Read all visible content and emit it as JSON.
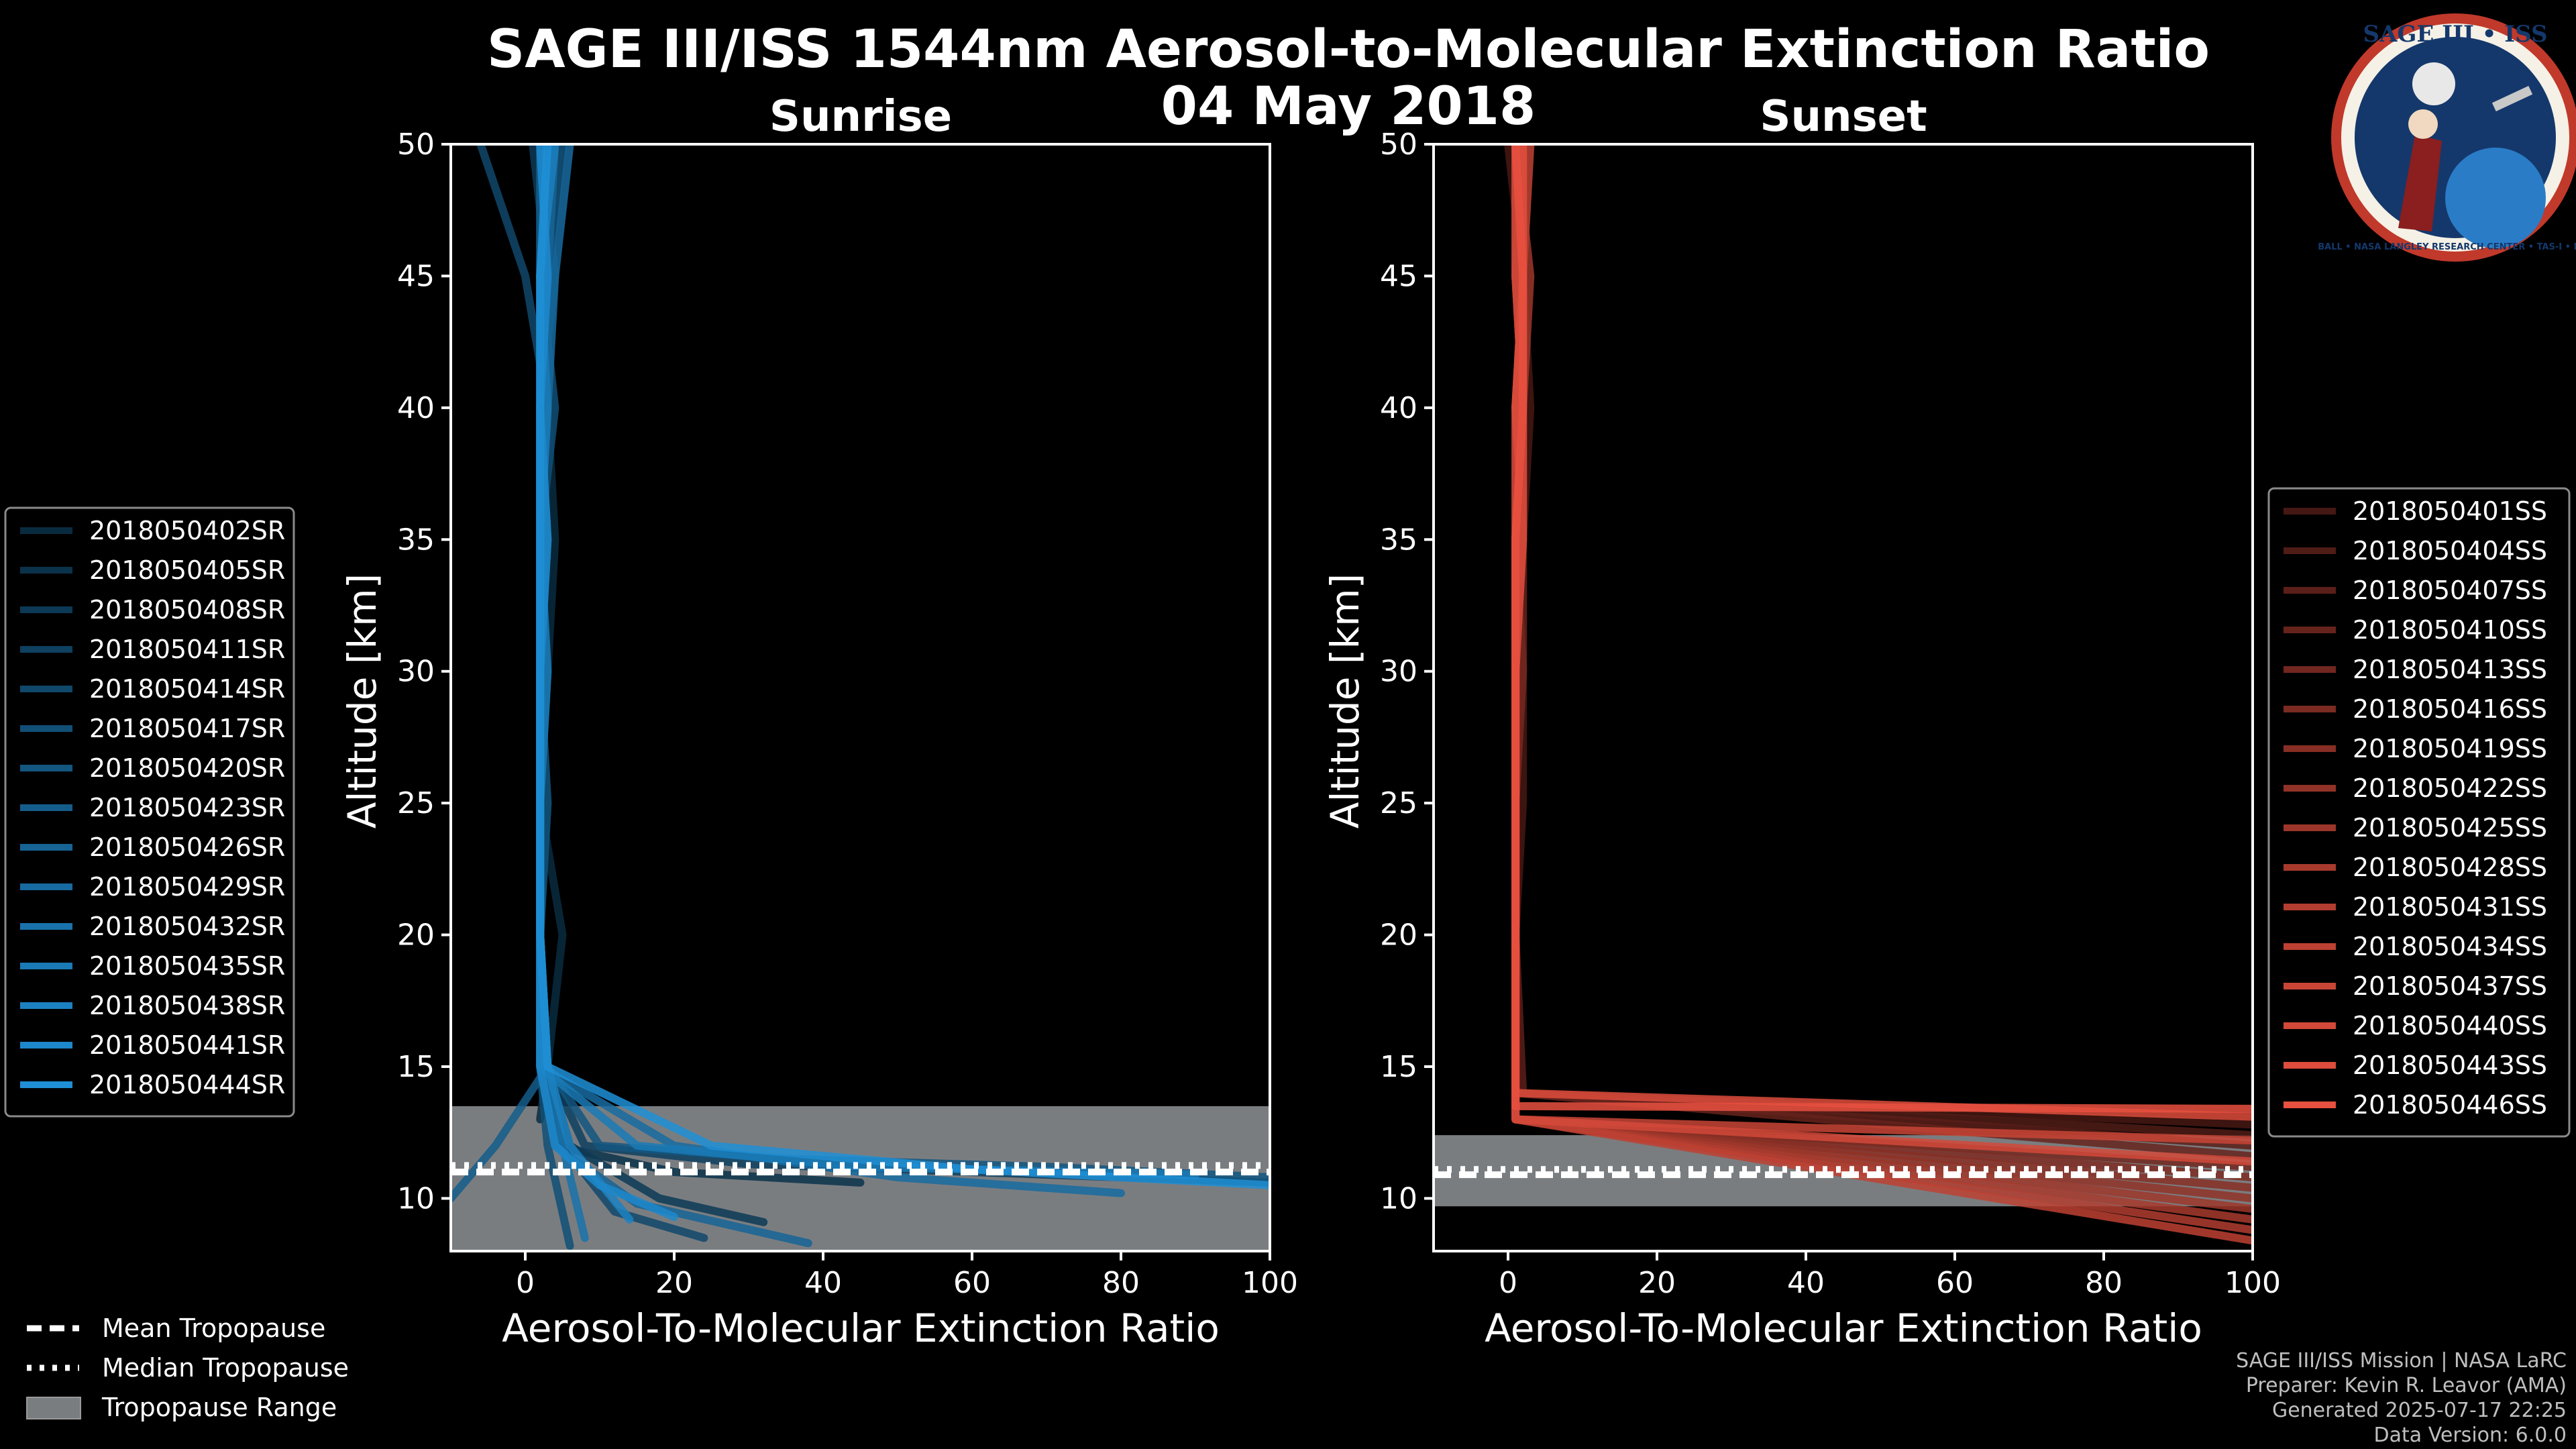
{
  "title_line1": "SAGE III/ISS 1544nm Aerosol-to-Molecular Extinction Ratio",
  "title_line2": "04 May 2018",
  "logo": {
    "top_text": "SAGE III • ISS",
    "ring_text": "BALL • NASA LANGLEY RESEARCH CENTER • TAS-I • ESA"
  },
  "colors": {
    "sunrise": "#1f8fd6",
    "sunset": "#e8503f",
    "trop": "#7a7d80"
  },
  "footer": {
    "mission": "SAGE III/ISS Mission | NASA LaRC",
    "preparer": "Preparer: Kevin R. Leavor (AMA)",
    "generated": "Generated 2025-07-17 22:25",
    "version": "Data Version: 6.0.0"
  },
  "common_legend": {
    "mean": "Mean Tropopause",
    "median": "Median Tropopause",
    "range": "Tropopause Range"
  },
  "chart_data": [
    {
      "type": "line",
      "title": "Sunrise",
      "xlabel": "Aerosol-To-Molecular Extinction Ratio",
      "ylabel": "Altitude [km]",
      "xlim": [
        -10,
        100
      ],
      "ylim": [
        8,
        50
      ],
      "xticks": [
        0,
        20,
        40,
        60,
        80,
        100
      ],
      "yticks": [
        10,
        15,
        20,
        25,
        30,
        35,
        40,
        45,
        50
      ],
      "tropopause": {
        "mean": 11.0,
        "median": 11.25,
        "range": [
          8.0,
          13.5
        ]
      },
      "legend": [
        "2018050402SR",
        "2018050405SR",
        "2018050408SR",
        "2018050411SR",
        "2018050414SR",
        "2018050417SR",
        "2018050420SR",
        "2018050423SR",
        "2018050426SR",
        "2018050429SR",
        "2018050432SR",
        "2018050435SR",
        "2018050438SR",
        "2018050441SR",
        "2018050444SR"
      ],
      "series": [
        {
          "name": "2018050402SR",
          "x": [
            2,
            2,
            3,
            4,
            3,
            2,
            5,
            3,
            2
          ],
          "y": [
            50,
            45,
            40,
            35,
            30,
            25,
            20,
            15,
            13
          ]
        },
        {
          "name": "2018050405SR",
          "x": [
            3,
            2,
            2,
            3,
            2,
            2,
            2,
            3,
            4,
            20,
            45
          ],
          "y": [
            50,
            45,
            40,
            35,
            30,
            25,
            20,
            15,
            12,
            11,
            10.6
          ]
        },
        {
          "name": "2018050408SR",
          "x": [
            1,
            3,
            2,
            2,
            2,
            3,
            2,
            3,
            6,
            18,
            32
          ],
          "y": [
            50,
            45,
            40,
            35,
            30,
            25,
            20,
            15,
            12,
            10,
            9.1
          ]
        },
        {
          "name": "2018050411SR",
          "x": [
            2,
            4,
            2,
            3,
            2,
            2,
            2,
            3,
            8,
            30,
            60,
            100
          ],
          "y": [
            50,
            45,
            40,
            35,
            30,
            25,
            20,
            15,
            12,
            11.3,
            11.0,
            10.6
          ]
        },
        {
          "name": "2018050414SR",
          "x": [
            -6,
            0,
            3,
            2,
            3,
            2,
            2,
            3,
            5,
            12,
            24
          ],
          "y": [
            50,
            45,
            40,
            35,
            30,
            25,
            20,
            15,
            12,
            9.5,
            8.5
          ]
        },
        {
          "name": "2018050417SR",
          "x": [
            3,
            2,
            4,
            2,
            2,
            3,
            2,
            2,
            3,
            6
          ],
          "y": [
            50,
            45,
            40,
            35,
            30,
            25,
            20,
            15,
            12,
            8.2
          ]
        },
        {
          "name": "2018050420SR",
          "x": [
            5,
            3,
            2,
            2,
            2,
            2,
            2,
            3,
            10,
            35,
            70,
            100
          ],
          "y": [
            50,
            45,
            40,
            35,
            30,
            25,
            20,
            15,
            12,
            11.5,
            11.2,
            10.8
          ]
        },
        {
          "name": "2018050423SR",
          "x": [
            2,
            2,
            3,
            2,
            2,
            2,
            2,
            3,
            -4,
            -10
          ],
          "y": [
            50,
            45,
            40,
            35,
            30,
            25,
            20,
            15,
            12,
            10
          ]
        },
        {
          "name": "2018050426SR",
          "x": [
            4,
            3,
            2,
            3,
            2,
            2,
            2,
            2,
            4,
            15,
            38
          ],
          "y": [
            50,
            45,
            40,
            35,
            30,
            25,
            20,
            15,
            12,
            9.8,
            8.3
          ]
        },
        {
          "name": "2018050429SR",
          "x": [
            6,
            4,
            3,
            2,
            2,
            2,
            2,
            2,
            20,
            50,
            80
          ],
          "y": [
            50,
            45,
            40,
            35,
            30,
            25,
            20,
            15,
            12,
            10.8,
            10.2
          ]
        },
        {
          "name": "2018050432SR",
          "x": [
            2,
            3,
            2,
            2,
            2,
            2,
            2,
            3,
            5,
            8
          ],
          "y": [
            50,
            45,
            40,
            35,
            30,
            25,
            20,
            15,
            12,
            8.5
          ]
        },
        {
          "name": "2018050435SR",
          "x": [
            3,
            2,
            3,
            2,
            3,
            2,
            2,
            2,
            15,
            45,
            90
          ],
          "y": [
            50,
            45,
            40,
            35,
            30,
            25,
            20,
            15,
            12,
            11.2,
            10.9
          ]
        },
        {
          "name": "2018050438SR",
          "x": [
            4,
            2,
            2,
            2,
            2,
            2,
            2,
            3,
            6,
            14
          ],
          "y": [
            50,
            45,
            40,
            35,
            30,
            25,
            20,
            15,
            12,
            9.2
          ]
        },
        {
          "name": "2018050441SR",
          "x": [
            2,
            3,
            2,
            3,
            2,
            2,
            2,
            2,
            4,
            10,
            20
          ],
          "y": [
            50,
            45,
            40,
            35,
            30,
            25,
            20,
            15,
            12,
            10.5,
            9.3
          ]
        },
        {
          "name": "2018050444SR",
          "x": [
            3,
            2,
            2,
            2,
            2,
            2,
            2,
            3,
            25,
            60,
            100
          ],
          "y": [
            50,
            45,
            40,
            35,
            30,
            25,
            20,
            15,
            12,
            11.1,
            10.5
          ]
        }
      ]
    },
    {
      "type": "line",
      "title": "Sunset",
      "xlabel": "Aerosol-To-Molecular Extinction Ratio",
      "ylabel": "Altitude [km]",
      "xlim": [
        -10,
        100
      ],
      "ylim": [
        8,
        50
      ],
      "xticks": [
        0,
        20,
        40,
        60,
        80,
        100
      ],
      "yticks": [
        10,
        15,
        20,
        25,
        30,
        35,
        40,
        45,
        50
      ],
      "tropopause": {
        "mean": 10.9,
        "median": 11.1,
        "range": [
          9.7,
          12.4
        ]
      },
      "legend": [
        "2018050401SS",
        "2018050404SS",
        "2018050407SS",
        "2018050410SS",
        "2018050413SS",
        "2018050416SS",
        "2018050419SS",
        "2018050422SS",
        "2018050425SS",
        "2018050428SS",
        "2018050431SS",
        "2018050434SS",
        "2018050437SS",
        "2018050440SS",
        "2018050443SS",
        "2018050446SS"
      ],
      "series": [
        {
          "name": "2018050401SS",
          "x": [
            0,
            2,
            3,
            2,
            2,
            2,
            1,
            1,
            100
          ],
          "y": [
            50,
            45,
            40,
            35,
            30,
            25,
            20,
            14,
            12.8
          ]
        },
        {
          "name": "2018050404SS",
          "x": [
            1,
            2,
            2,
            1,
            2,
            1,
            1,
            1,
            100
          ],
          "y": [
            50,
            45,
            40,
            35,
            30,
            25,
            20,
            14,
            12.4
          ]
        },
        {
          "name": "2018050407SS",
          "x": [
            2,
            1,
            2,
            2,
            2,
            1,
            1,
            2,
            100
          ],
          "y": [
            50,
            45,
            40,
            35,
            30,
            25,
            20,
            14,
            12.0
          ]
        },
        {
          "name": "2018050410SS",
          "x": [
            3,
            2,
            1,
            2,
            1,
            1,
            1,
            1,
            100
          ],
          "y": [
            50,
            45,
            40,
            35,
            30,
            25,
            20,
            14,
            11.6
          ]
        },
        {
          "name": "2018050413SS",
          "x": [
            1,
            2,
            2,
            1,
            2,
            1,
            1,
            1,
            100
          ],
          "y": [
            50,
            45,
            40,
            35,
            30,
            25,
            20,
            13,
            11.2
          ]
        },
        {
          "name": "2018050416SS",
          "x": [
            2,
            2,
            2,
            2,
            1,
            1,
            1,
            1,
            100
          ],
          "y": [
            50,
            45,
            40,
            35,
            30,
            25,
            20,
            13,
            10.8
          ]
        },
        {
          "name": "2018050419SS",
          "x": [
            1,
            1,
            2,
            1,
            1,
            1,
            1,
            1,
            100
          ],
          "y": [
            50,
            45,
            40,
            35,
            30,
            25,
            20,
            13,
            10.4
          ]
        },
        {
          "name": "2018050422SS",
          "x": [
            2,
            2,
            1,
            2,
            1,
            1,
            1,
            1,
            100
          ],
          "y": [
            50,
            45,
            40,
            35,
            30,
            25,
            20,
            13,
            10.0
          ]
        },
        {
          "name": "2018050425SS",
          "x": [
            1,
            3,
            2,
            1,
            1,
            1,
            1,
            1,
            100
          ],
          "y": [
            50,
            45,
            40,
            35,
            30,
            25,
            20,
            13,
            9.6
          ]
        },
        {
          "name": "2018050428SS",
          "x": [
            2,
            1,
            2,
            2,
            1,
            1,
            1,
            1,
            100
          ],
          "y": [
            50,
            45,
            40,
            35,
            30,
            25,
            20,
            13,
            9.2
          ]
        },
        {
          "name": "2018050431SS",
          "x": [
            3,
            2,
            2,
            1,
            1,
            1,
            1,
            1,
            100
          ],
          "y": [
            50,
            45,
            40,
            35,
            30,
            25,
            20,
            13,
            8.8
          ]
        },
        {
          "name": "2018050434SS",
          "x": [
            1,
            2,
            1,
            2,
            1,
            1,
            1,
            1,
            100
          ],
          "y": [
            50,
            45,
            40,
            35,
            30,
            25,
            20,
            13,
            8.4
          ]
        },
        {
          "name": "2018050437SS",
          "x": [
            2,
            2,
            2,
            1,
            1,
            1,
            1,
            1,
            100
          ],
          "y": [
            50,
            45,
            40,
            35,
            30,
            25,
            20,
            13,
            12.2
          ]
        },
        {
          "name": "2018050440SS",
          "x": [
            1,
            1,
            2,
            2,
            1,
            1,
            1,
            1,
            100
          ],
          "y": [
            50,
            45,
            40,
            35,
            30,
            25,
            20,
            13,
            11.4
          ]
        },
        {
          "name": "2018050443SS",
          "x": [
            2,
            2,
            1,
            1,
            1,
            1,
            1,
            1,
            100
          ],
          "y": [
            50,
            45,
            40,
            35,
            30,
            25,
            20,
            14,
            13.1
          ]
        },
        {
          "name": "2018050446SS",
          "x": [
            1,
            2,
            2,
            1,
            1,
            1,
            1,
            1,
            100
          ],
          "y": [
            50,
            45,
            40,
            35,
            30,
            25,
            20,
            13.5,
            13.4
          ]
        }
      ]
    }
  ]
}
